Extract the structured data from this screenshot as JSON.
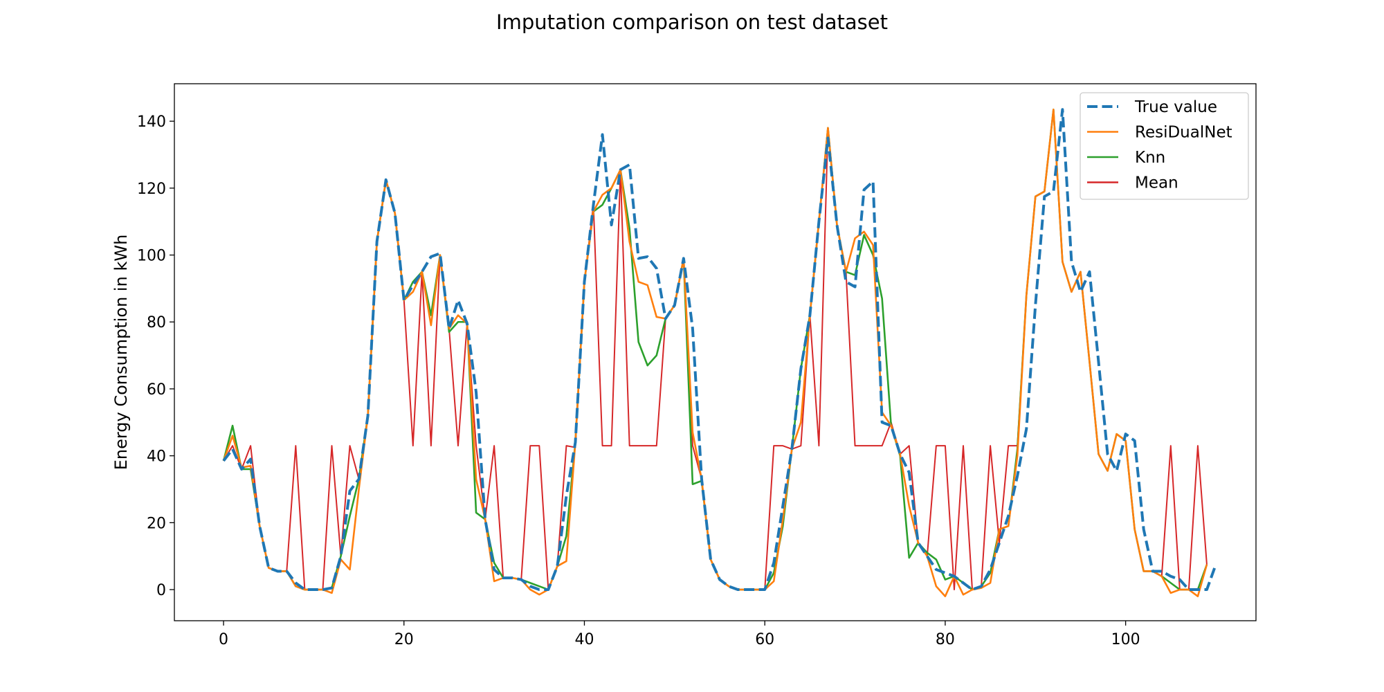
{
  "chart_data": {
    "type": "line",
    "title": "Imputation comparison on test dataset",
    "xlabel": "",
    "ylabel": "Energy Consumption in kWh",
    "xlim": [
      -5.45,
      114.45
    ],
    "ylim": [
      -9.3,
      151.2
    ],
    "xticks": [
      0,
      20,
      40,
      60,
      80,
      100
    ],
    "yticks": [
      0,
      20,
      40,
      60,
      80,
      100,
      120,
      140
    ],
    "grid": false,
    "legend_position": "top-right",
    "series": [
      {
        "name": "True value",
        "color": "#1f77b4",
        "style": "dashed",
        "values": [
          38.5,
          42,
          36,
          39,
          19,
          6.5,
          5.5,
          5.5,
          2,
          0,
          0,
          0,
          0.5,
          10,
          29.5,
          33,
          52,
          104,
          122.5,
          112.5,
          86.5,
          91,
          95,
          99.5,
          100.5,
          78,
          86.5,
          79.5,
          59,
          21,
          6,
          3.5,
          3.5,
          3,
          1,
          0,
          0,
          7,
          28,
          44,
          92,
          115,
          136,
          109,
          125.5,
          127,
          99,
          99.5,
          96,
          81,
          85,
          99,
          78,
          33,
          9,
          3,
          1,
          0,
          0,
          0,
          0,
          8,
          25,
          42,
          66,
          82,
          110,
          135,
          109,
          92,
          90.5,
          119.5,
          122,
          50,
          49,
          40.5,
          35,
          14,
          10,
          6,
          5,
          4,
          2,
          0,
          1,
          6,
          14,
          22,
          34,
          48,
          85,
          117.5,
          119,
          143.5,
          98,
          89,
          95,
          68,
          40.5,
          35.5,
          46.5,
          44.5,
          18,
          5.5,
          5.5,
          4,
          3,
          0,
          0,
          0,
          7.5
        ]
      },
      {
        "name": "ResiDualNet",
        "color": "#ff7f0e",
        "style": "solid",
        "values": [
          38.5,
          46,
          36.5,
          37,
          19,
          6.5,
          5.5,
          5.5,
          1,
          0,
          0,
          0,
          -1,
          9,
          6,
          30,
          52,
          104,
          122.5,
          112.5,
          86.5,
          89,
          95,
          79,
          100,
          78,
          82,
          79.5,
          33,
          21,
          2.5,
          3.5,
          3.5,
          3,
          0,
          -1.5,
          0,
          7,
          8.5,
          44,
          92,
          113,
          118,
          120,
          125.5,
          104,
          92,
          91,
          81.5,
          81,
          85,
          99,
          47,
          33,
          9,
          3,
          1,
          0,
          0,
          0,
          0,
          2.5,
          21,
          42,
          50,
          82,
          110,
          138,
          109,
          95,
          105,
          107,
          103,
          53,
          49,
          40.5,
          25,
          14,
          10,
          1,
          -2,
          4,
          -1.5,
          0,
          0.5,
          2,
          18,
          19,
          40,
          88,
          117.5,
          119,
          143.5,
          98,
          89,
          95,
          68,
          40.5,
          35.5,
          46.5,
          44.5,
          18,
          5.5,
          5.5,
          4,
          -1,
          0,
          0,
          -2,
          7.5
        ]
      },
      {
        "name": "Knn",
        "color": "#2ca02c",
        "style": "solid",
        "values": [
          38.5,
          49,
          36,
          36,
          19,
          6.5,
          5.5,
          5.5,
          1,
          0,
          0,
          0,
          0.5,
          10,
          22,
          33,
          52,
          104,
          122.5,
          112.5,
          86.5,
          92,
          95,
          82,
          100,
          77,
          80,
          80,
          23,
          21,
          8,
          3.5,
          3.5,
          3,
          2,
          1,
          0,
          7,
          16,
          44,
          92,
          113,
          115,
          120,
          125.5,
          108,
          74,
          67,
          70,
          81,
          85,
          99,
          31.5,
          32.5,
          9,
          3,
          1,
          0,
          0,
          0,
          0,
          5,
          19,
          42,
          66,
          82,
          110,
          138,
          109,
          95,
          94,
          106,
          100,
          87,
          49,
          40,
          9.5,
          14,
          11,
          9,
          3,
          4,
          2,
          0,
          1,
          5,
          18,
          19,
          42,
          88,
          117.5,
          119,
          143.5,
          98,
          89,
          95,
          68,
          40.5,
          35.5,
          46.5,
          44.5,
          18,
          5.5,
          5.5,
          4,
          2,
          0,
          0,
          0,
          7.5
        ]
      },
      {
        "name": "Mean",
        "color": "#d62728",
        "style": "solid",
        "values": [
          38.5,
          43,
          36,
          43,
          19,
          6.5,
          5.5,
          5.5,
          43,
          0,
          0,
          0,
          43,
          10,
          43,
          33,
          52,
          104,
          122.5,
          112.5,
          86.5,
          43,
          95,
          43,
          100,
          78,
          43,
          79.5,
          43,
          21,
          43,
          3.5,
          3.5,
          3,
          43,
          43,
          0,
          7,
          43,
          42.5,
          92,
          115,
          43,
          43,
          125.5,
          43,
          43,
          43,
          43,
          81,
          85,
          99,
          43,
          33,
          9,
          3,
          1,
          0,
          0,
          0,
          0,
          43,
          43,
          42,
          43,
          82,
          43,
          138,
          109,
          95,
          43,
          43,
          43,
          43,
          50,
          40.5,
          43,
          14,
          10,
          43,
          43,
          0,
          43,
          0,
          1,
          43,
          14,
          43,
          43,
          88,
          117.5,
          119,
          143.5,
          98,
          89,
          95,
          68,
          40.5,
          35.5,
          46.5,
          44.5,
          18,
          5.5,
          5.5,
          4,
          43,
          0,
          0,
          43,
          7.5
        ]
      }
    ]
  }
}
